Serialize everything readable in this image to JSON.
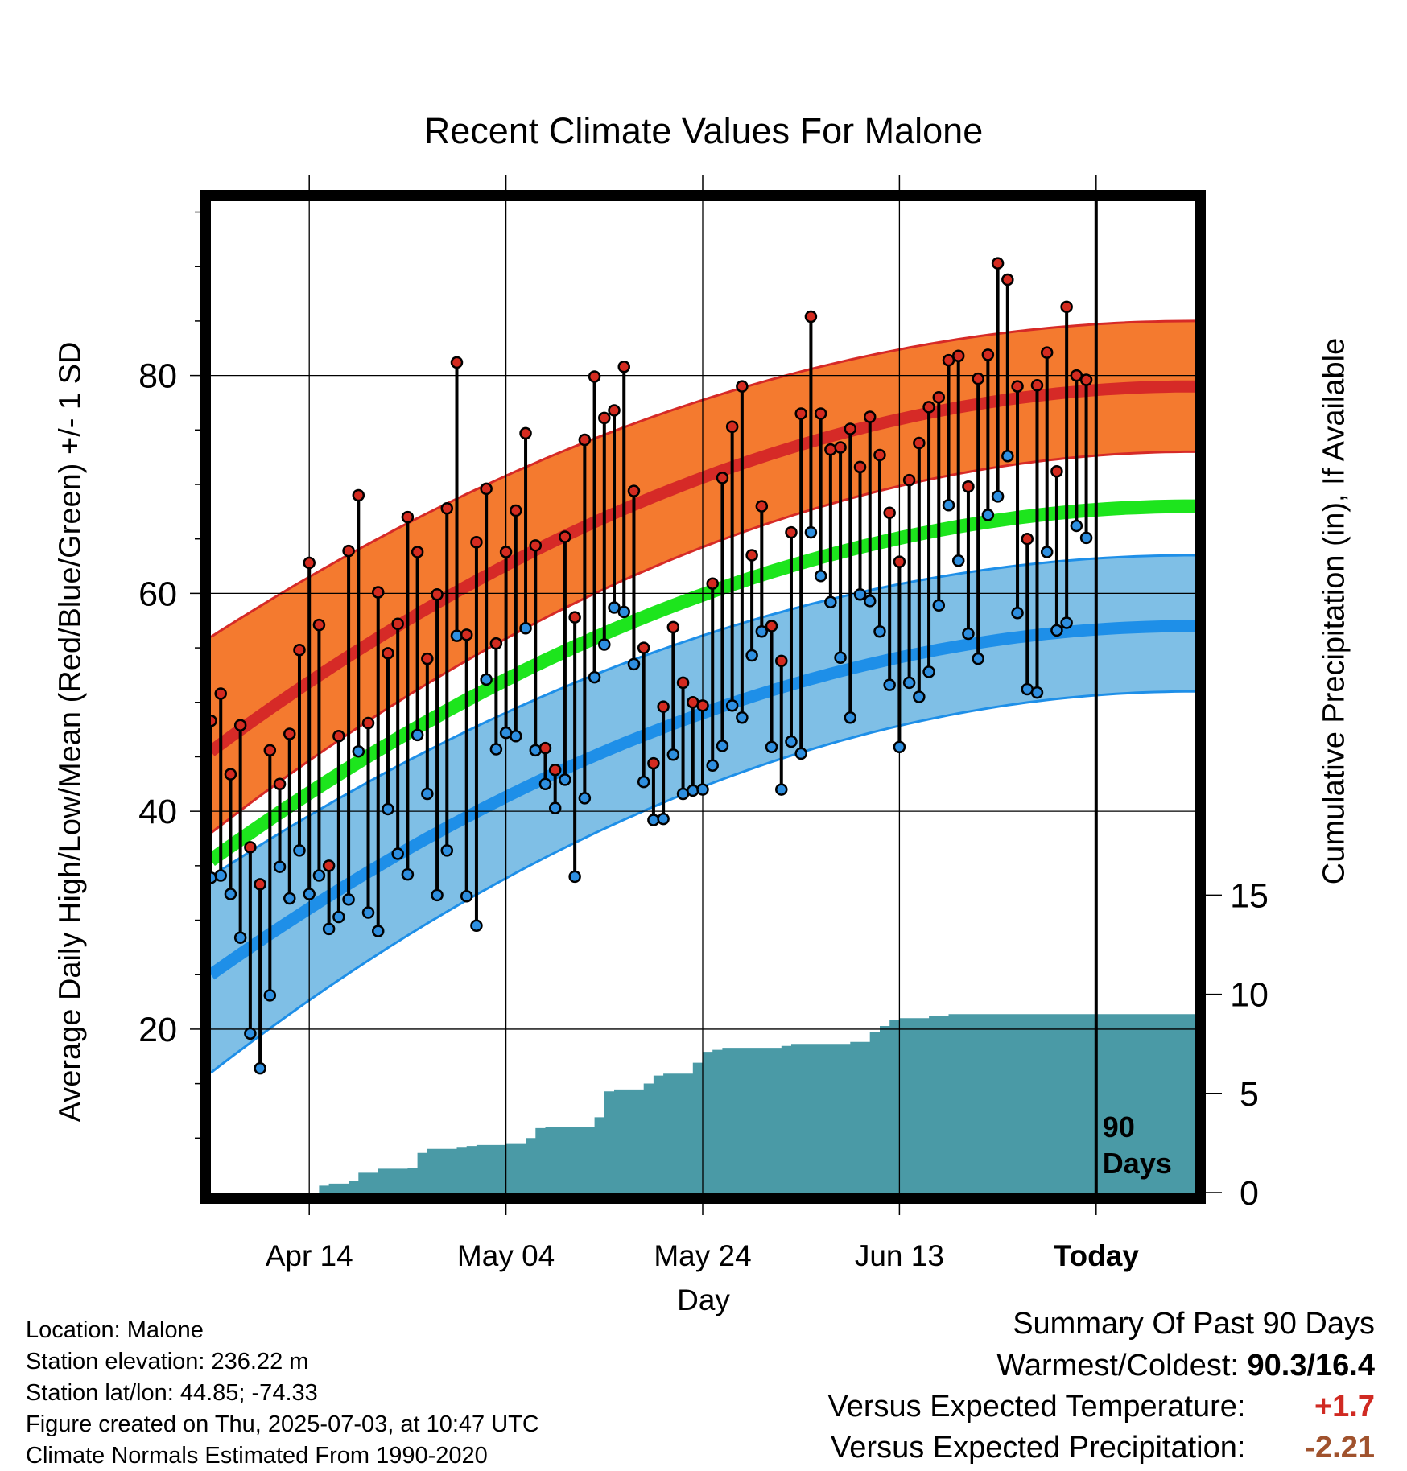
{
  "chart_data": {
    "type": "line",
    "title": "Recent Climate Values For Malone",
    "xlabel": "Day",
    "ylabel_left": "Average Daily High/Low/Mean (Red/Blue/Green) +/- 1 SD",
    "ylabel_right": "Cumulative Precipitation (in), If Available",
    "x_tick_labels": [
      "Apr 14",
      "May 04",
      "May 24",
      "Jun 13",
      "Today"
    ],
    "x_tick_days": [
      10,
      30,
      50,
      70,
      90
    ],
    "xlim_days": [
      0,
      100
    ],
    "ylim_temp": [
      5,
      96
    ],
    "yticks_temp": [
      20,
      40,
      60,
      80
    ],
    "ylim_precip": [
      0,
      50
    ],
    "yticks_precip": [
      0,
      5,
      10,
      15
    ],
    "today_marker_label": "90 Days",
    "grid": true,
    "colors": {
      "high_band": "#f47a2f",
      "high_mean": "#d62a27",
      "mean_line": "#1de51d",
      "low_band": "#7fbfe6",
      "low_mean": "#1e8fe8",
      "precip_fill": "#4a9aa6",
      "high_dot": "#d42b20",
      "low_dot": "#2e8fe0"
    },
    "normals": {
      "high_mean": {
        "day0": 45.5,
        "day100": 79.0
      },
      "high_upper": {
        "day0": 56.0,
        "day100": 85.0
      },
      "high_lower": {
        "day0": 38.0,
        "day100": 73.0
      },
      "avg_mean": {
        "day0": 35.5,
        "day100": 68.0
      },
      "low_mean": {
        "day0": 25.0,
        "day100": 57.0
      },
      "low_upper": {
        "day0": 34.0,
        "day100": 63.5
      },
      "low_lower": {
        "day0": 16.0,
        "day100": 51.0
      }
    },
    "days": [
      0,
      1,
      2,
      3,
      4,
      5,
      6,
      7,
      8,
      9,
      10,
      11,
      12,
      13,
      14,
      15,
      16,
      17,
      18,
      19,
      20,
      21,
      22,
      23,
      24,
      25,
      26,
      27,
      28,
      29,
      30,
      31,
      32,
      33,
      34,
      35,
      36,
      37,
      38,
      39,
      40,
      41,
      42,
      43,
      44,
      45,
      46,
      47,
      48,
      49,
      50,
      51,
      52,
      53,
      54,
      55,
      56,
      57,
      58,
      59,
      60,
      61,
      62,
      63,
      64,
      65,
      66,
      67,
      68,
      69,
      70,
      71,
      72,
      73,
      74,
      75,
      76,
      77,
      78,
      79,
      80,
      81,
      82,
      83,
      84,
      85,
      86,
      87,
      88,
      89,
      90
    ],
    "highs": [
      48.3,
      50.8,
      43.4,
      47.9,
      36.7,
      33.3,
      45.6,
      42.5,
      47.1,
      54.8,
      62.8,
      57.1,
      35.0,
      46.9,
      63.9,
      69.0,
      48.1,
      60.1,
      54.5,
      57.2,
      67.0,
      63.8,
      54.0,
      59.9,
      67.8,
      81.2,
      56.2,
      64.7,
      69.6,
      55.4,
      63.8,
      67.6,
      74.7,
      64.4,
      45.8,
      43.8,
      65.2,
      57.8,
      74.1,
      79.9,
      76.1,
      76.8,
      80.8,
      69.4,
      55.0,
      44.4,
      49.6,
      56.9,
      51.8,
      50.0,
      49.7,
      60.9,
      70.6,
      75.3,
      79.0,
      63.5,
      68.0,
      57.0,
      53.8,
      65.6,
      76.5,
      85.4,
      76.5,
      73.2,
      73.4,
      75.1,
      71.6,
      76.2,
      72.7,
      67.4,
      62.9,
      70.4,
      73.8,
      77.1,
      78.0,
      81.4,
      81.8,
      69.8,
      79.7,
      81.9,
      90.3,
      88.8,
      79.0,
      65.0,
      79.1,
      82.1,
      71.2,
      86.3,
      80.0,
      79.6,
      null
    ],
    "lows": [
      33.9,
      34.1,
      32.4,
      28.4,
      19.6,
      16.4,
      23.1,
      34.9,
      32.0,
      36.4,
      32.4,
      34.1,
      29.2,
      30.3,
      31.9,
      45.5,
      30.7,
      29.0,
      40.2,
      36.1,
      34.2,
      47.0,
      41.6,
      32.3,
      36.4,
      56.1,
      32.2,
      29.5,
      52.1,
      45.7,
      47.2,
      46.9,
      56.8,
      45.6,
      42.5,
      40.3,
      42.9,
      34.0,
      41.2,
      52.3,
      55.3,
      58.7,
      58.3,
      53.5,
      42.7,
      39.2,
      39.3,
      45.2,
      41.6,
      41.9,
      42.0,
      44.2,
      46.0,
      49.7,
      48.6,
      54.3,
      56.5,
      45.9,
      42.0,
      46.4,
      45.3,
      65.6,
      61.6,
      59.2,
      54.1,
      48.6,
      59.9,
      59.3,
      56.5,
      51.6,
      45.9,
      51.8,
      50.5,
      52.8,
      58.9,
      68.1,
      63.0,
      56.3,
      54.0,
      67.2,
      68.9,
      72.6,
      58.2,
      51.2,
      50.9,
      63.8,
      56.6,
      57.3,
      66.2,
      65.1,
      null
    ],
    "precip_days": [
      0,
      10,
      11,
      12,
      13,
      14,
      15,
      16,
      17,
      18,
      19,
      20,
      21,
      22,
      23,
      24,
      25,
      26,
      27,
      28,
      29,
      30,
      31,
      32,
      33,
      34,
      35,
      36,
      37,
      38,
      39,
      40,
      41,
      42,
      43,
      44,
      45,
      46,
      47,
      48,
      49,
      50,
      51,
      52,
      53,
      54,
      55,
      56,
      57,
      58,
      59,
      60,
      61,
      62,
      63,
      64,
      65,
      66,
      67,
      68,
      69,
      70,
      71,
      72,
      73,
      74,
      75,
      76,
      77,
      78,
      79,
      80,
      81,
      82,
      83,
      84,
      85,
      86,
      87,
      88,
      89,
      90,
      91,
      92,
      93,
      94,
      95,
      96,
      97,
      98,
      99
    ],
    "precip_cum": [
      0,
      0,
      0.35,
      0.45,
      0.45,
      0.6,
      1.0,
      1.0,
      1.2,
      1.2,
      1.2,
      1.25,
      2.0,
      2.2,
      2.2,
      2.2,
      2.3,
      2.35,
      2.4,
      2.4,
      2.4,
      2.45,
      2.45,
      2.75,
      3.25,
      3.3,
      3.3,
      3.3,
      3.3,
      3.3,
      3.8,
      5.1,
      5.2,
      5.2,
      5.2,
      5.5,
      5.9,
      6.0,
      6.0,
      6.0,
      6.55,
      7.1,
      7.2,
      7.3,
      7.3,
      7.3,
      7.3,
      7.3,
      7.3,
      7.4,
      7.5,
      7.5,
      7.5,
      7.5,
      7.5,
      7.5,
      7.6,
      7.6,
      8.1,
      8.4,
      8.7,
      8.8,
      8.8,
      8.8,
      8.9,
      8.9,
      9.0,
      9.0,
      9.0,
      9.0,
      9.0,
      9.0,
      9.0,
      9.0,
      9.0,
      9.0,
      9.0,
      9.0,
      9.0,
      9.0,
      9.0,
      9.0,
      9.0,
      9.0,
      9.0,
      9.0,
      9.0,
      9.0,
      9.0,
      9.0,
      9.0
    ]
  },
  "location_info": {
    "location": "Location: Malone",
    "elevation": "Station elevation: 236.22 m",
    "latlon": "Station lat/lon: 44.85; -74.33",
    "created": "Figure created on Thu, 2025-07-03, at 10:47 UTC",
    "normals": "Climate Normals Estimated From 1990-2020"
  },
  "summary": {
    "heading": "Summary Of Past 90 Days",
    "warm_cold_label": "Warmest/Coldest:",
    "warm_cold_value": "90.3/16.4",
    "temp_label": "Versus Expected Temperature:",
    "temp_value": "+1.7",
    "temp_color": "#d02a22",
    "precip_label": "Versus Expected Precipitation:",
    "precip_value": "-2.21",
    "precip_color": "#a0522d"
  }
}
